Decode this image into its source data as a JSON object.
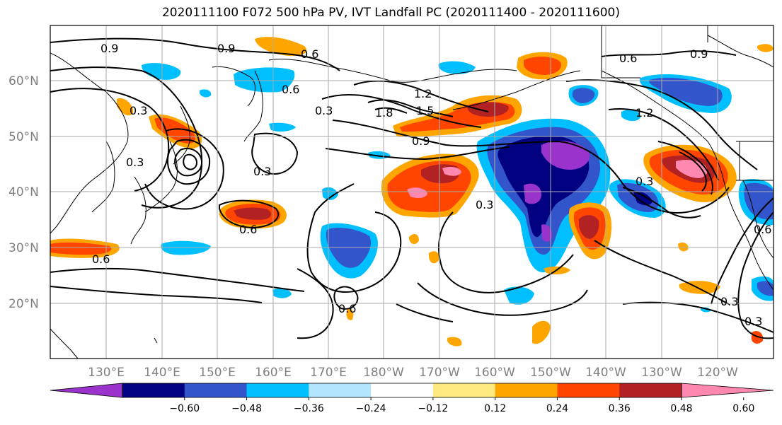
{
  "title": "2020111100 F072 500 hPa PV, IVT Landfall PC (2020111400 - 2020111600)",
  "lat_labels": [
    "60°N",
    "50°N",
    "40°N",
    "30°N",
    "20°N"
  ],
  "lon_labels": [
    "130°E",
    "140°E",
    "150°E",
    "160°E",
    "170°E",
    "180°W",
    "170°W",
    "160°W",
    "150°W",
    "140°W",
    "130°W",
    "120°W"
  ],
  "contour_labels": [
    "0.9",
    "0.9",
    "0.6",
    "0.6",
    "1.2",
    "1.5",
    "1.8",
    "0.3",
    "0.9",
    "0.3",
    "0.3",
    "0.6",
    "0.6",
    "0.3",
    "0.6",
    "0.3",
    "0.3",
    "0.6",
    "0.6",
    "0.9",
    "1.2",
    "0.3",
    "0.3"
  ],
  "colorbar": {
    "colors": [
      "#9933cc",
      "#000080",
      "#3355cc",
      "#00bfff",
      "#b3e5ff",
      "#ffffff",
      "#ffea80",
      "#ffa500",
      "#ff4500",
      "#b22222",
      "#ff88b0"
    ],
    "ticks": [
      "−0.60",
      "−0.48",
      "−0.36",
      "−0.24",
      "−0.12",
      "0.12",
      "0.24",
      "0.36",
      "0.48",
      "0.60"
    ]
  }
}
